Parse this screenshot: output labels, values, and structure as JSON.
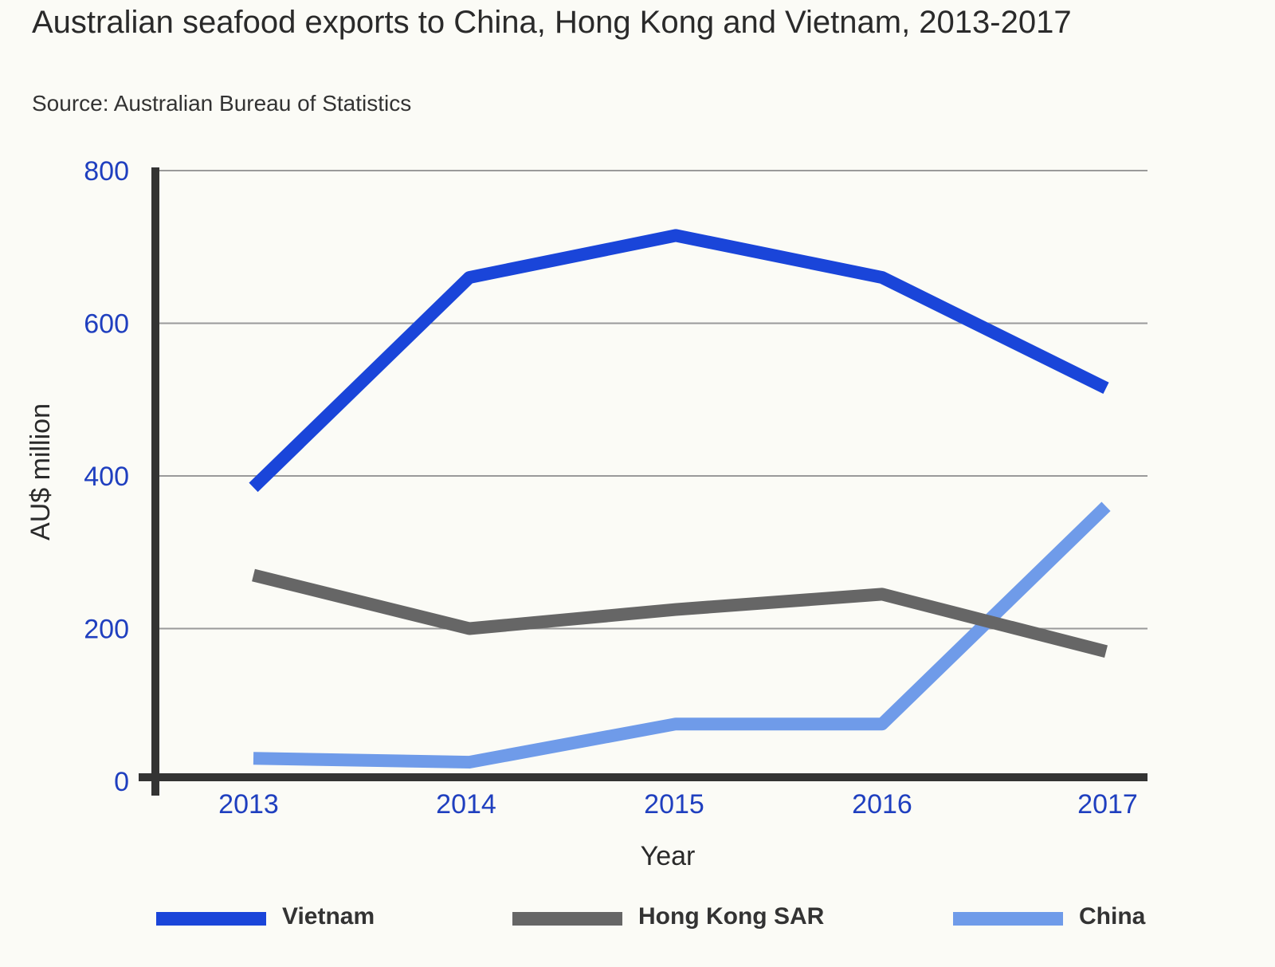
{
  "chart_data": {
    "type": "line",
    "title": "Australian seafood exports to China, Hong Kong and Vietnam, 2013-2017",
    "subtitle": "Source: Australian Bureau of Statistics",
    "xlabel": "Year",
    "ylabel": "AU$ million",
    "ylim": [
      0,
      800
    ],
    "yticks": [
      "0",
      "200",
      "400",
      "600",
      "800"
    ],
    "categories": [
      "2013",
      "2014",
      "2015",
      "2016",
      "2017"
    ],
    "grid": true,
    "legend": "bottom",
    "series": [
      {
        "name": "Vietnam",
        "color": "#1a45d9",
        "values": [
          385,
          660,
          715,
          660,
          515
        ]
      },
      {
        "name": "Hong Kong SAR",
        "color": "#666666",
        "values": [
          270,
          200,
          225,
          245,
          170
        ]
      },
      {
        "name": "China",
        "color": "#6f9be9",
        "values": [
          30,
          25,
          75,
          75,
          360
        ]
      }
    ]
  }
}
